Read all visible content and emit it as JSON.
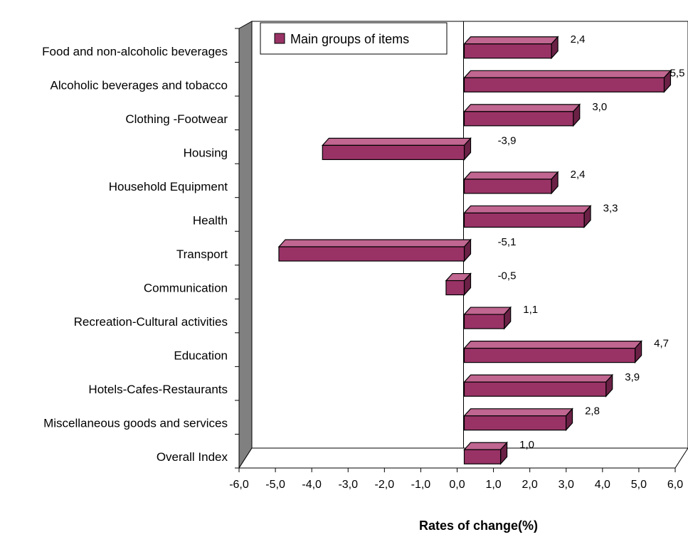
{
  "chart_data": {
    "type": "bar",
    "orientation": "horizontal",
    "three_d": true,
    "categories": [
      "Food and non-alcoholic beverages",
      "Alcoholic beverages and tobacco",
      "Clothing -Footwear",
      "Housing",
      "Household Equipment",
      "Health",
      "Transport",
      "Communication",
      "Recreation-Cultural activities",
      "Education",
      "Hotels-Cafes-Restaurants",
      "Miscellaneous goods and services",
      "Overall Index"
    ],
    "series": [
      {
        "name": "Main groups of items",
        "values": [
          2.4,
          5.5,
          3.0,
          -3.9,
          2.4,
          3.3,
          -5.1,
          -0.5,
          1.1,
          4.7,
          3.9,
          2.8,
          1.0
        ],
        "data_labels": [
          "2,4",
          "5,5",
          "3,0",
          "-3,9",
          "2,4",
          "3,3",
          "-5,1",
          "-0,5",
          "1,1",
          "4,7",
          "3,9",
          "2,8",
          "1,0"
        ]
      }
    ],
    "xlim": [
      -6.0,
      6.0
    ],
    "x_ticks": [
      -6.0,
      -5.0,
      -4.0,
      -3.0,
      -2.0,
      -1.0,
      0.0,
      1.0,
      2.0,
      3.0,
      4.0,
      5.0,
      6.0
    ],
    "x_tick_labels": [
      "-6,0",
      "-5,0",
      "-4,0",
      "-3,0",
      "-2,0",
      "-1,0",
      "0,0",
      "1,0",
      "2,0",
      "3,0",
      "4,0",
      "5,0",
      "6,0"
    ],
    "xlabel": "Rates of change(%)",
    "ylabel": "",
    "title": "",
    "grid": false,
    "legend_position": "top-left",
    "colors": {
      "bar_front": "#993366",
      "bar_top": "#c06690",
      "bar_side": "#6b2146",
      "wall": "#808080",
      "floor": "#ffffff",
      "outline": "#000000"
    }
  }
}
